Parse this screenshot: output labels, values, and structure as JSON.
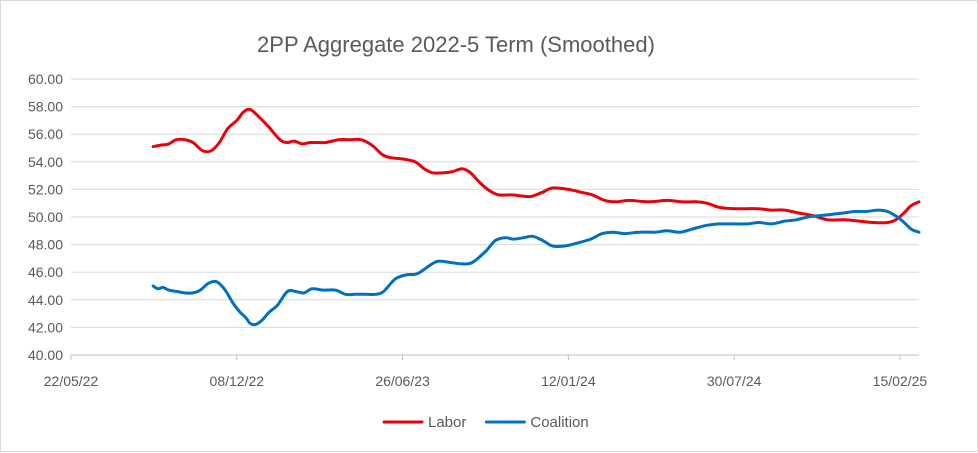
{
  "chart_data": {
    "type": "line",
    "title": "2PP Aggregate 2022-5 Term (Smoothed)",
    "xlabel": "",
    "ylabel": "",
    "x_range": [
      "2022-05-22",
      "2025-03-10"
    ],
    "ylim": [
      40,
      60
    ],
    "y_ticks": [
      40,
      42,
      44,
      46,
      48,
      50,
      52,
      54,
      56,
      58,
      60
    ],
    "y_tick_labels": [
      "40.00",
      "42.00",
      "44.00",
      "46.00",
      "48.00",
      "50.00",
      "52.00",
      "54.00",
      "56.00",
      "58.00",
      "60.00"
    ],
    "x_ticks": [
      "2022-05-22",
      "2022-12-08",
      "2023-06-26",
      "2024-01-12",
      "2024-07-30",
      "2025-02-15"
    ],
    "x_tick_labels": [
      "22/05/22",
      "08/12/22",
      "26/06/23",
      "12/01/24",
      "30/07/24",
      "15/02/25"
    ],
    "grid": "horizontal",
    "legend_position": "bottom",
    "series": [
      {
        "name": "Labor",
        "color": "#e8000b",
        "points": [
          [
            "2022-08-29",
            55.1
          ],
          [
            "2022-09-07",
            55.2
          ],
          [
            "2022-09-17",
            55.3
          ],
          [
            "2022-09-26",
            55.6
          ],
          [
            "2022-10-06",
            55.6
          ],
          [
            "2022-10-16",
            55.4
          ],
          [
            "2022-10-28",
            54.8
          ],
          [
            "2022-11-07",
            54.8
          ],
          [
            "2022-11-17",
            55.4
          ],
          [
            "2022-11-27",
            56.4
          ],
          [
            "2022-12-08",
            57.0
          ],
          [
            "2022-12-16",
            57.6
          ],
          [
            "2022-12-24",
            57.8
          ],
          [
            "2023-01-03",
            57.3
          ],
          [
            "2023-01-16",
            56.5
          ],
          [
            "2023-01-29",
            55.6
          ],
          [
            "2023-02-07",
            55.4
          ],
          [
            "2023-02-15",
            55.5
          ],
          [
            "2023-02-25",
            55.3
          ],
          [
            "2023-03-07",
            55.4
          ],
          [
            "2023-03-25",
            55.4
          ],
          [
            "2023-04-10",
            55.6
          ],
          [
            "2023-04-24",
            55.6
          ],
          [
            "2023-05-07",
            55.6
          ],
          [
            "2023-05-20",
            55.2
          ],
          [
            "2023-06-02",
            54.5
          ],
          [
            "2023-06-12",
            54.3
          ],
          [
            "2023-06-26",
            54.2
          ],
          [
            "2023-07-11",
            54.0
          ],
          [
            "2023-07-22",
            53.5
          ],
          [
            "2023-08-01",
            53.2
          ],
          [
            "2023-08-15",
            53.2
          ],
          [
            "2023-08-26",
            53.3
          ],
          [
            "2023-09-06",
            53.5
          ],
          [
            "2023-09-16",
            53.2
          ],
          [
            "2023-09-27",
            52.5
          ],
          [
            "2023-10-09",
            51.9
          ],
          [
            "2023-10-20",
            51.6
          ],
          [
            "2023-11-05",
            51.6
          ],
          [
            "2023-11-20",
            51.5
          ],
          [
            "2023-11-29",
            51.5
          ],
          [
            "2023-12-12",
            51.8
          ],
          [
            "2023-12-24",
            52.1
          ],
          [
            "2024-01-12",
            52.0
          ],
          [
            "2024-01-27",
            51.8
          ],
          [
            "2024-02-10",
            51.6
          ],
          [
            "2024-02-25",
            51.2
          ],
          [
            "2024-03-10",
            51.1
          ],
          [
            "2024-03-25",
            51.2
          ],
          [
            "2024-04-18",
            51.1
          ],
          [
            "2024-05-10",
            51.2
          ],
          [
            "2024-05-28",
            51.1
          ],
          [
            "2024-06-14",
            51.1
          ],
          [
            "2024-06-27",
            51.0
          ],
          [
            "2024-07-12",
            50.7
          ],
          [
            "2024-07-30",
            50.6
          ],
          [
            "2024-08-14",
            50.6
          ],
          [
            "2024-08-28",
            50.6
          ],
          [
            "2024-09-13",
            50.5
          ],
          [
            "2024-09-29",
            50.5
          ],
          [
            "2024-10-15",
            50.3
          ],
          [
            "2024-11-02",
            50.1
          ],
          [
            "2024-11-20",
            49.8
          ],
          [
            "2024-12-10",
            49.8
          ],
          [
            "2024-12-28",
            49.7
          ],
          [
            "2025-01-14",
            49.6
          ],
          [
            "2025-01-31",
            49.6
          ],
          [
            "2025-02-10",
            49.8
          ],
          [
            "2025-02-20",
            50.3
          ],
          [
            "2025-02-28",
            50.8
          ],
          [
            "2025-03-10",
            51.1
          ]
        ]
      },
      {
        "name": "Coalition",
        "color": "#0070c0",
        "points": [
          [
            "2022-08-29",
            45.0
          ],
          [
            "2022-09-04",
            44.8
          ],
          [
            "2022-09-10",
            44.9
          ],
          [
            "2022-09-17",
            44.7
          ],
          [
            "2022-09-27",
            44.6
          ],
          [
            "2022-10-06",
            44.5
          ],
          [
            "2022-10-16",
            44.5
          ],
          [
            "2022-10-25",
            44.7
          ],
          [
            "2022-11-04",
            45.2
          ],
          [
            "2022-11-14",
            45.3
          ],
          [
            "2022-11-24",
            44.7
          ],
          [
            "2022-12-04",
            43.7
          ],
          [
            "2022-12-12",
            43.1
          ],
          [
            "2022-12-19",
            42.7
          ],
          [
            "2022-12-24",
            42.3
          ],
          [
            "2022-12-30",
            42.2
          ],
          [
            "2023-01-07",
            42.5
          ],
          [
            "2023-01-16",
            43.1
          ],
          [
            "2023-01-26",
            43.6
          ],
          [
            "2023-02-07",
            44.6
          ],
          [
            "2023-02-17",
            44.6
          ],
          [
            "2023-02-27",
            44.5
          ],
          [
            "2023-03-09",
            44.8
          ],
          [
            "2023-03-22",
            44.7
          ],
          [
            "2023-04-06",
            44.7
          ],
          [
            "2023-04-18",
            44.4
          ],
          [
            "2023-04-30",
            44.4
          ],
          [
            "2023-05-12",
            44.4
          ],
          [
            "2023-05-25",
            44.4
          ],
          [
            "2023-06-03",
            44.6
          ],
          [
            "2023-06-17",
            45.5
          ],
          [
            "2023-06-30",
            45.8
          ],
          [
            "2023-07-14",
            45.9
          ],
          [
            "2023-07-29",
            46.5
          ],
          [
            "2023-08-08",
            46.8
          ],
          [
            "2023-08-23",
            46.7
          ],
          [
            "2023-09-06",
            46.6
          ],
          [
            "2023-09-18",
            46.7
          ],
          [
            "2023-10-04",
            47.5
          ],
          [
            "2023-10-16",
            48.3
          ],
          [
            "2023-10-28",
            48.5
          ],
          [
            "2023-11-07",
            48.4
          ],
          [
            "2023-11-19",
            48.5
          ],
          [
            "2023-11-30",
            48.6
          ],
          [
            "2023-12-12",
            48.3
          ],
          [
            "2023-12-24",
            47.9
          ],
          [
            "2024-01-08",
            47.9
          ],
          [
            "2024-01-22",
            48.1
          ],
          [
            "2024-02-08",
            48.4
          ],
          [
            "2024-02-22",
            48.8
          ],
          [
            "2024-03-06",
            48.9
          ],
          [
            "2024-03-20",
            48.8
          ],
          [
            "2024-04-06",
            48.9
          ],
          [
            "2024-04-26",
            48.9
          ],
          [
            "2024-05-10",
            49.0
          ],
          [
            "2024-05-26",
            48.9
          ],
          [
            "2024-06-14",
            49.2
          ],
          [
            "2024-06-27",
            49.4
          ],
          [
            "2024-07-12",
            49.5
          ],
          [
            "2024-07-30",
            49.5
          ],
          [
            "2024-08-15",
            49.5
          ],
          [
            "2024-08-29",
            49.6
          ],
          [
            "2024-09-13",
            49.5
          ],
          [
            "2024-09-29",
            49.7
          ],
          [
            "2024-10-13",
            49.8
          ],
          [
            "2024-10-27",
            50.0
          ],
          [
            "2024-11-10",
            50.1
          ],
          [
            "2024-11-26",
            50.2
          ],
          [
            "2024-12-10",
            50.3
          ],
          [
            "2024-12-23",
            50.4
          ],
          [
            "2025-01-05",
            50.4
          ],
          [
            "2025-01-20",
            50.5
          ],
          [
            "2025-01-31",
            50.4
          ],
          [
            "2025-02-12",
            50.0
          ],
          [
            "2025-02-20",
            49.6
          ],
          [
            "2025-03-01",
            49.1
          ],
          [
            "2025-03-10",
            48.9
          ]
        ]
      }
    ]
  }
}
